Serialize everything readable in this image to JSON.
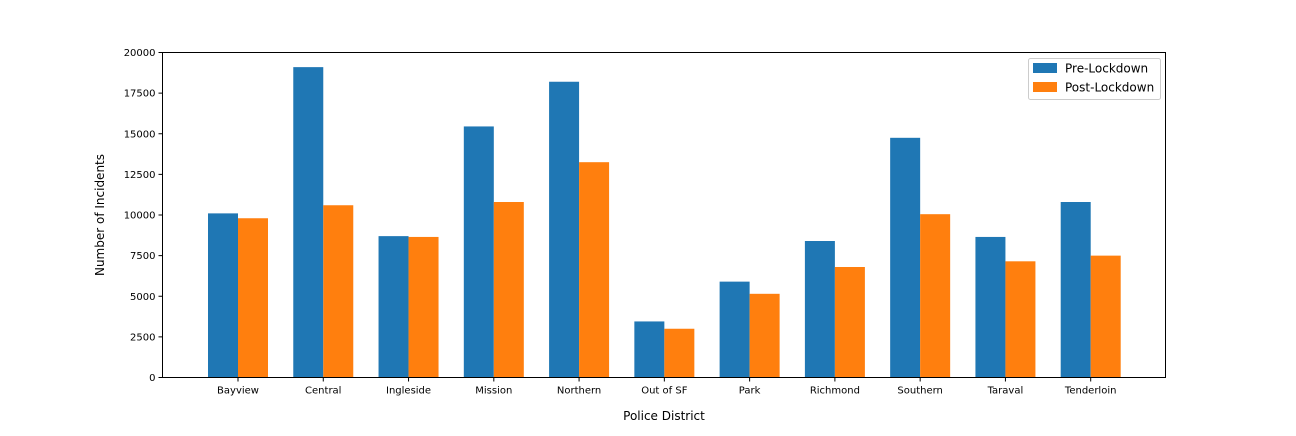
{
  "chart_data": {
    "type": "bar",
    "title": "",
    "xlabel": "Police District",
    "ylabel": "Number of Incidents",
    "categories": [
      "Bayview",
      "Central",
      "Ingleside",
      "Mission",
      "Northern",
      "Out of SF",
      "Park",
      "Richmond",
      "Southern",
      "Taraval",
      "Tenderloin"
    ],
    "series": [
      {
        "name": "Pre-Lockdown",
        "color": "#1f77b4",
        "values": [
          10100,
          19100,
          8700,
          15450,
          18200,
          3450,
          5900,
          8400,
          14750,
          8650,
          10800
        ]
      },
      {
        "name": "Post-Lockdown",
        "color": "#ff7f0e",
        "values": [
          9800,
          10600,
          8650,
          10800,
          13250,
          3000,
          5150,
          6800,
          10050,
          7150,
          7500
        ]
      }
    ],
    "ylim": [
      0,
      20000
    ],
    "yticks": [
      0,
      2500,
      5000,
      7500,
      10000,
      12500,
      15000,
      17500,
      20000
    ],
    "grid": false,
    "legend_position": "top-right"
  }
}
